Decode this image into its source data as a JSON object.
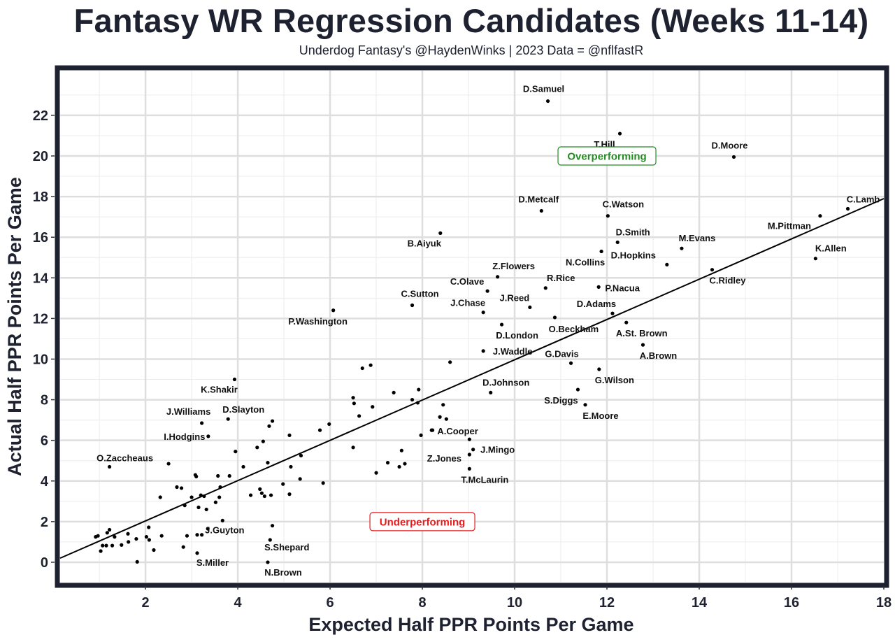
{
  "chart_data": {
    "type": "scatter",
    "title": "Fantasy WR Regression Candidates (Weeks 11-14)",
    "subtitle": "Underdog Fantasy's @HaydenWinks | 2023 Data = @nflfastR",
    "xlabel": "Expected Half PPR Points Per Game",
    "ylabel": "Actual Half PPR Points Per Game",
    "xlim": [
      0.15,
      18
    ],
    "ylim": [
      -1,
      24.2
    ],
    "x_ticks": [
      2,
      4,
      6,
      8,
      10,
      12,
      14,
      16,
      18
    ],
    "y_ticks": [
      0,
      2,
      4,
      6,
      8,
      10,
      12,
      14,
      16,
      18,
      20,
      22
    ],
    "regression_line": {
      "x": [
        0.15,
        18
      ],
      "y": [
        0.2,
        17.9
      ]
    },
    "annotations": [
      {
        "text": "Overperforming",
        "x": 12.0,
        "y": 20.0,
        "color": "#228b22"
      },
      {
        "text": "Underperforming",
        "x": 8.0,
        "y": 2.0,
        "color": "#e41a1c"
      }
    ],
    "labeled_points": [
      {
        "name": "D.Samuel",
        "x": 10.72,
        "y": 22.7
      },
      {
        "name": "T.Hill",
        "x": 12.28,
        "y": 21.1
      },
      {
        "name": "D.Moore",
        "x": 14.75,
        "y": 19.95
      },
      {
        "name": "C.Lamb",
        "x": 17.22,
        "y": 17.4
      },
      {
        "name": "M.Pittman",
        "x": 16.62,
        "y": 17.05
      },
      {
        "name": "D.Metcalf",
        "x": 10.58,
        "y": 17.3
      },
      {
        "name": "C.Watson",
        "x": 12.02,
        "y": 17.05
      },
      {
        "name": "B.Aiyuk",
        "x": 8.39,
        "y": 16.2
      },
      {
        "name": "D.Smith",
        "x": 12.23,
        "y": 15.75
      },
      {
        "name": "M.Evans",
        "x": 13.62,
        "y": 15.45
      },
      {
        "name": "N.Collins",
        "x": 11.88,
        "y": 15.3
      },
      {
        "name": "D.Hopkins",
        "x": 13.3,
        "y": 14.65
      },
      {
        "name": "K.Allen",
        "x": 16.52,
        "y": 14.95
      },
      {
        "name": "Z.Flowers",
        "x": 9.63,
        "y": 14.05
      },
      {
        "name": "C.Ridley",
        "x": 14.28,
        "y": 14.4
      },
      {
        "name": "R.Rice",
        "x": 10.67,
        "y": 13.5
      },
      {
        "name": "C.Olave",
        "x": 9.41,
        "y": 13.35
      },
      {
        "name": "P.Nacua",
        "x": 11.82,
        "y": 13.55
      },
      {
        "name": "C.Sutton",
        "x": 7.78,
        "y": 12.65
      },
      {
        "name": "J.Reed",
        "x": 10.33,
        "y": 12.55
      },
      {
        "name": "J.Chase",
        "x": 9.32,
        "y": 12.3
      },
      {
        "name": "D.Adams",
        "x": 12.12,
        "y": 12.25
      },
      {
        "name": "P.Washington",
        "x": 6.07,
        "y": 12.4
      },
      {
        "name": "O.Beckham",
        "x": 10.87,
        "y": 12.05
      },
      {
        "name": "D.London",
        "x": 9.72,
        "y": 11.7
      },
      {
        "name": "A.St. Brown",
        "x": 12.42,
        "y": 11.8
      },
      {
        "name": "J.Waddle",
        "x": 9.32,
        "y": 10.4
      },
      {
        "name": "A.Brown",
        "x": 12.78,
        "y": 10.7
      },
      {
        "name": "G.Davis",
        "x": 11.22,
        "y": 9.8
      },
      {
        "name": "G.Wilson",
        "x": 11.83,
        "y": 9.5
      },
      {
        "name": "K.Shakir",
        "x": 3.93,
        "y": 9.0
      },
      {
        "name": "D.Johnson",
        "x": 9.48,
        "y": 8.35
      },
      {
        "name": "S.Diggs",
        "x": 11.37,
        "y": 8.5
      },
      {
        "name": "E.Moore",
        "x": 11.53,
        "y": 7.75
      },
      {
        "name": "J.Williams",
        "x": 3.22,
        "y": 6.85
      },
      {
        "name": "D.Slayton",
        "x": 3.79,
        "y": 7.05
      },
      {
        "name": "I.Hodgins",
        "x": 3.36,
        "y": 6.2
      },
      {
        "name": "A.Cooper",
        "x": 8.22,
        "y": 6.5
      },
      {
        "name": "J.Mingo",
        "x": 9.1,
        "y": 5.55
      },
      {
        "name": "Z.Jones",
        "x": 9.02,
        "y": 5.3
      },
      {
        "name": "T.McLaurin",
        "x": 9.02,
        "y": 4.6
      },
      {
        "name": "O.Zacchea​us",
        "x": 1.22,
        "y": 4.7
      },
      {
        "name": "J.Guyton",
        "x": 3.67,
        "y": 2.05
      },
      {
        "name": "S.Shepard",
        "x": 4.7,
        "y": 1.1
      },
      {
        "name": "S.Miller",
        "x": 3.12,
        "y": 0.45
      },
      {
        "name": "N.Brown",
        "x": 4.65,
        "y": 0.0
      }
    ],
    "other_points": [
      [
        0.92,
        1.25
      ],
      [
        0.97,
        1.3
      ],
      [
        1.03,
        0.55
      ],
      [
        1.07,
        0.82
      ],
      [
        1.15,
        0.82
      ],
      [
        1.17,
        1.45
      ],
      [
        1.22,
        1.6
      ],
      [
        1.28,
        0.82
      ],
      [
        1.33,
        1.25
      ],
      [
        1.48,
        0.85
      ],
      [
        1.62,
        1.4
      ],
      [
        1.63,
        1.0
      ],
      [
        1.8,
        1.15
      ],
      [
        1.82,
        0.02
      ],
      [
        2.02,
        1.25
      ],
      [
        2.07,
        1.72
      ],
      [
        2.08,
        1.1
      ],
      [
        2.18,
        0.6
      ],
      [
        2.35,
        1.3
      ],
      [
        2.32,
        3.2
      ],
      [
        2.5,
        4.85
      ],
      [
        2.68,
        3.7
      ],
      [
        2.78,
        3.65
      ],
      [
        2.82,
        0.75
      ],
      [
        2.85,
        2.8
      ],
      [
        2.9,
        1.3
      ],
      [
        3.0,
        3.2
      ],
      [
        3.08,
        4.3
      ],
      [
        3.1,
        4.22
      ],
      [
        3.12,
        1.35
      ],
      [
        3.15,
        2.7
      ],
      [
        3.2,
        3.3
      ],
      [
        3.22,
        1.35
      ],
      [
        3.27,
        3.25
      ],
      [
        3.32,
        2.6
      ],
      [
        3.35,
        1.65
      ],
      [
        3.52,
        2.95
      ],
      [
        3.57,
        4.25
      ],
      [
        3.6,
        3.2
      ],
      [
        3.62,
        3.7
      ],
      [
        3.82,
        4.25
      ],
      [
        3.95,
        5.45
      ],
      [
        4.12,
        4.7
      ],
      [
        4.28,
        3.3
      ],
      [
        4.42,
        5.65
      ],
      [
        4.48,
        3.6
      ],
      [
        4.52,
        3.4
      ],
      [
        4.55,
        5.95
      ],
      [
        4.58,
        3.25
      ],
      [
        4.65,
        4.9
      ],
      [
        4.72,
        3.3
      ],
      [
        4.68,
        6.7
      ],
      [
        4.75,
        6.95
      ],
      [
        4.75,
        1.8
      ],
      [
        4.98,
        3.85
      ],
      [
        5.12,
        3.35
      ],
      [
        5.12,
        6.25
      ],
      [
        5.15,
        4.7
      ],
      [
        5.35,
        4.1
      ],
      [
        5.37,
        5.25
      ],
      [
        5.78,
        6.5
      ],
      [
        5.85,
        3.9
      ],
      [
        5.98,
        6.8
      ],
      [
        6.5,
        8.1
      ],
      [
        6.5,
        5.65
      ],
      [
        6.52,
        7.82
      ],
      [
        6.63,
        7.2
      ],
      [
        6.7,
        9.55
      ],
      [
        6.88,
        9.7
      ],
      [
        6.92,
        7.65
      ],
      [
        7.0,
        4.4
      ],
      [
        7.25,
        4.9
      ],
      [
        7.38,
        8.35
      ],
      [
        7.5,
        4.7
      ],
      [
        7.55,
        5.5
      ],
      [
        7.62,
        4.85
      ],
      [
        7.78,
        8.0
      ],
      [
        7.9,
        7.85
      ],
      [
        7.92,
        8.5
      ],
      [
        7.97,
        6.25
      ],
      [
        8.2,
        6.5
      ],
      [
        8.38,
        7.15
      ],
      [
        8.45,
        7.75
      ],
      [
        8.52,
        7.05
      ],
      [
        8.6,
        9.85
      ],
      [
        9.02,
        6.05
      ]
    ]
  }
}
